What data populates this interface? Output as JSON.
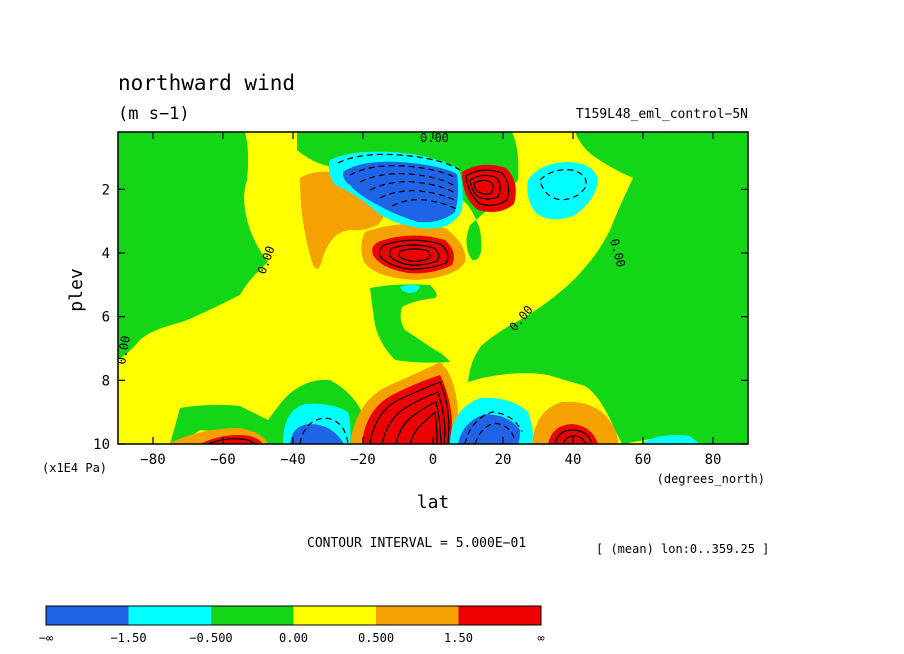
{
  "chart_data": {
    "type": "heatmap",
    "title": "northward wind",
    "units": "(m s−1)",
    "dataset": "T159L48_eml_control−5N",
    "xlabel": "lat",
    "ylabel": "plev",
    "xunits": "(degrees_north)",
    "yunits": "(x1E4 Pa)",
    "xlim": [
      -90,
      90
    ],
    "ylim": [
      10,
      0.2
    ],
    "xticks": [
      "−80",
      "−60",
      "−40",
      "−20",
      "0",
      "20",
      "40",
      "60",
      "80"
    ],
    "yticks": [
      "2",
      "4",
      "6",
      "8",
      "10"
    ],
    "contour_interval": "CONTOUR INTERVAL = 5.000E−01",
    "subset": "[ (mean) lon:0..359.25 ]",
    "zero_label": "0.00",
    "colorbar": {
      "labels": [
        "−∞",
        "−1.50",
        "−0.500",
        "0.00",
        "0.500",
        "1.50",
        "∞"
      ],
      "colors": [
        "#1f63e6",
        "#00ffff",
        "#13d617",
        "#ffff00",
        "#f5a200",
        "#ee0000"
      ]
    },
    "features": [
      {
        "kind": "min",
        "lat": -5,
        "plev": 2.1,
        "value": -4.0
      },
      {
        "kind": "max",
        "lat": 13,
        "plev": 1.8,
        "value": 2.5
      },
      {
        "kind": "min",
        "lat": 38,
        "plev": 1.9,
        "value": -1.0
      },
      {
        "kind": "max",
        "lat": -6,
        "plev": 4.0,
        "value": 3.0
      },
      {
        "kind": "max",
        "lat": -7,
        "plev": 9.7,
        "value": 4.0
      },
      {
        "kind": "min",
        "lat": 12,
        "plev": 9.7,
        "value": -2.5
      },
      {
        "kind": "max",
        "lat": 40,
        "plev": 9.8,
        "value": 2.0
      },
      {
        "kind": "min",
        "lat": -32,
        "plev": 9.8,
        "value": -2.0
      },
      {
        "kind": "max",
        "lat": -55,
        "plev": 9.9,
        "value": 1.0
      }
    ]
  }
}
